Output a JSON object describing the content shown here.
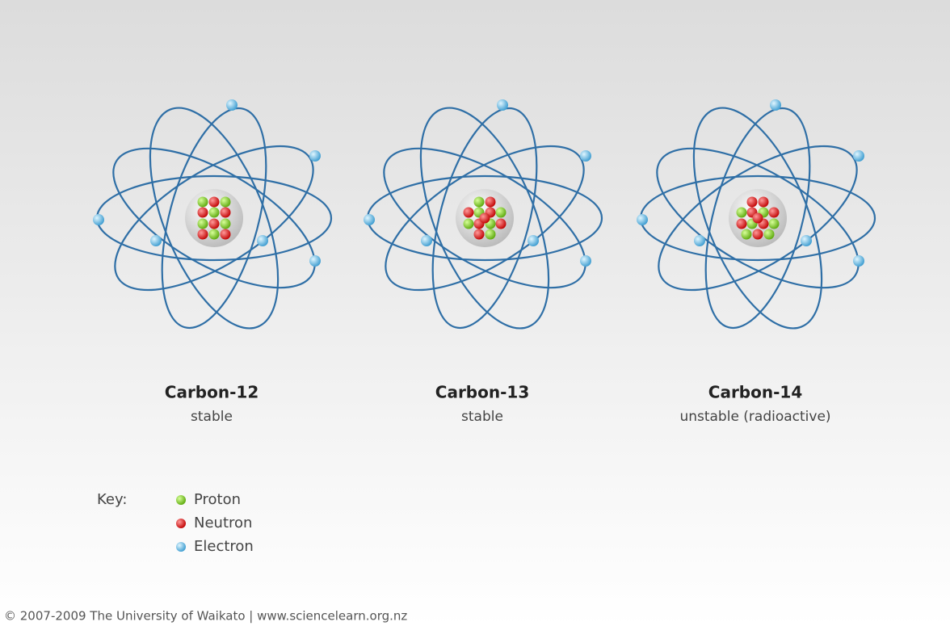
{
  "atoms": [
    {
      "name": "Carbon-12",
      "stability": "stable"
    },
    {
      "name": "Carbon-13",
      "stability": "stable"
    },
    {
      "name": "Carbon-14",
      "stability": "unstable (radioactive)"
    }
  ],
  "key": {
    "label": "Key:",
    "items": [
      "Proton",
      "Neutron",
      "Electron"
    ]
  },
  "footer": "© 2007-2009 The University of Waikato | www.sciencelearn.org.nz"
}
